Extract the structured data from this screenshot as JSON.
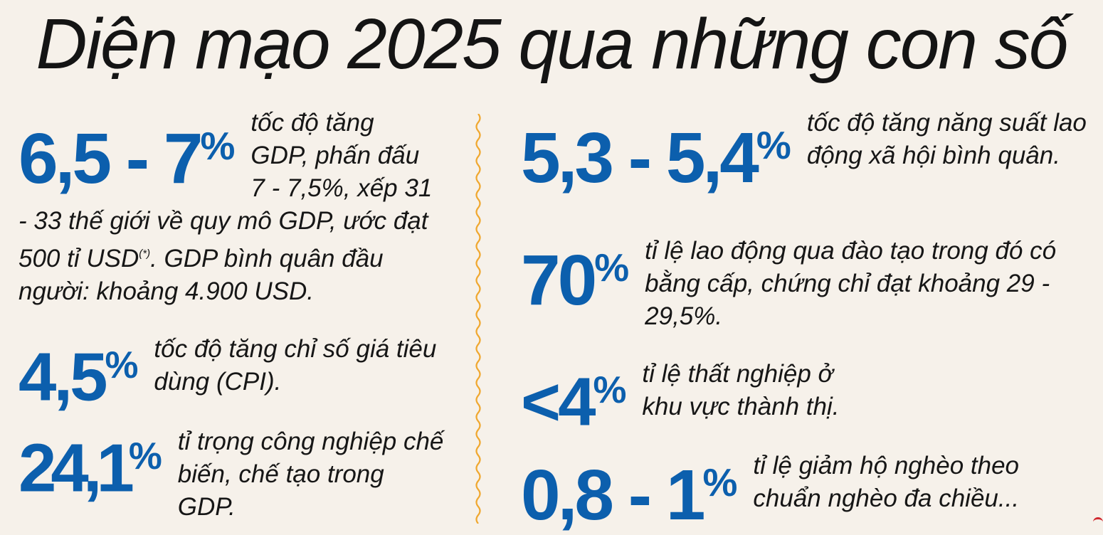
{
  "title": "Diện mạo 2025 qua những con số",
  "left_column": [
    {
      "value": "6,5 - 7",
      "unit": "%",
      "desc_before": "tốc độ tăng GDP, phấn đấu 7 - 7,5%, xếp 31 - 33 thế giới về quy mô GDP, ước đạt 500 tỉ USD",
      "footnote": "(*)",
      "desc_after": ". GDP bình quân đầu người: khoảng 4.900 USD."
    },
    {
      "value": "4,5",
      "unit": "%",
      "desc": "tốc độ tăng chỉ số giá tiêu dùng (CPI)."
    },
    {
      "value": "24,1",
      "unit": "%",
      "desc": "tỉ trọng công nghiệp chế biến, chế tạo trong GDP."
    }
  ],
  "right_column": [
    {
      "value": "5,3 - 5,4",
      "unit": "%",
      "desc": "tốc độ tăng năng suất lao động xã hội bình quân."
    },
    {
      "value": "70",
      "unit": "%",
      "desc": "tỉ lệ lao động qua đào tạo trong đó có bằng cấp, chứng chỉ đạt khoảng 29 - 29,5%."
    },
    {
      "value": "<4",
      "unit": "%",
      "desc": "tỉ lệ thất nghiệp ở khu vực thành thị."
    },
    {
      "value": "0,8 - 1",
      "unit": "%",
      "desc": "tỉ lệ giảm hộ nghèo theo chuẩn nghèo đa chiều..."
    }
  ],
  "colors": {
    "background": "#f6f1ea",
    "number": "#0c5fad",
    "divider": "#f0a830",
    "text": "#161616"
  }
}
